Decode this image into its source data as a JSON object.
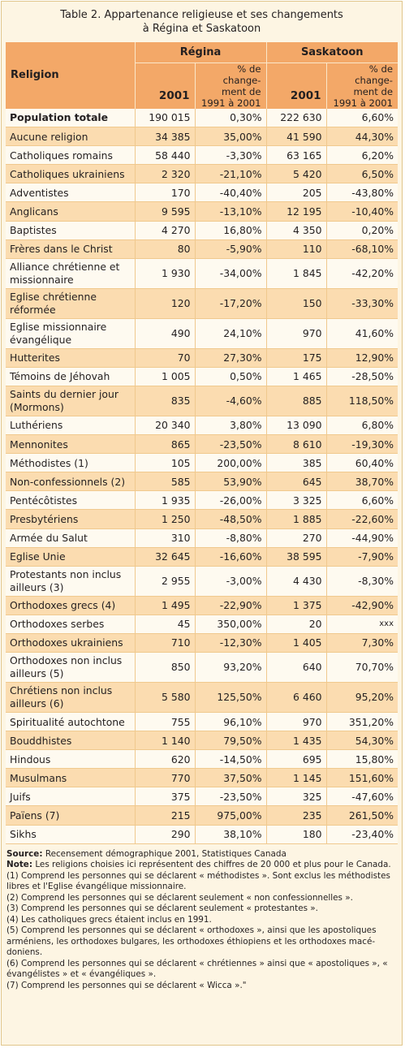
{
  "title": {
    "line1": "Table 2. Appartenance religieuse et ses changements",
    "line2": "à Régina et Saskatoon"
  },
  "header": {
    "religion": "Religion",
    "regina": "Régina",
    "saskatoon": "Saskatoon",
    "year": "2001",
    "pct_line1": "% de change-",
    "pct_line2": "ment de",
    "pct_line3": "1991 à 2001"
  },
  "rows": [
    {
      "name": "Population totale",
      "l2": "",
      "r2001": "190 015",
      "rpct": "0,30%",
      "s2001": "222 630",
      "spct": "6,60%",
      "bold": true
    },
    {
      "name": "Aucune religion",
      "l2": "",
      "r2001": "34 385",
      "rpct": "35,00%",
      "s2001": "41 590",
      "spct": "44,30%"
    },
    {
      "name": "Catholiques romains",
      "l2": "",
      "r2001": "58 440",
      "rpct": "-3,30%",
      "s2001": "63 165",
      "spct": "6,20%"
    },
    {
      "name": "Catholiques ukrainiens",
      "l2": "",
      "r2001": "2 320",
      "rpct": "-21,10%",
      "s2001": "5 420",
      "spct": "6,50%"
    },
    {
      "name": "Adventistes",
      "l2": "",
      "r2001": "170",
      "rpct": "-40,40%",
      "s2001": "205",
      "spct": "-43,80%"
    },
    {
      "name": "Anglicans",
      "l2": "",
      "r2001": "9 595",
      "rpct": "-13,10%",
      "s2001": "12 195",
      "spct": "-10,40%"
    },
    {
      "name": "Baptistes",
      "l2": "",
      "r2001": "4 270",
      "rpct": "16,80%",
      "s2001": "4 350",
      "spct": "0,20%"
    },
    {
      "name": "Frères dans le Christ",
      "l2": "",
      "r2001": "80",
      "rpct": "-5,90%",
      "s2001": "110",
      "spct": "-68,10%"
    },
    {
      "name": "Alliance chrétienne et",
      "l2": "missionnaire",
      "r2001": "1 930",
      "rpct": "-34,00%",
      "s2001": "1 845",
      "spct": "-42,20%"
    },
    {
      "name": "Eglise chrétienne",
      "l2": "réformée",
      "r2001": "120",
      "rpct": "-17,20%",
      "s2001": "150",
      "spct": "-33,30%"
    },
    {
      "name": "Eglise missionnaire",
      "l2": "évangélique",
      "r2001": "490",
      "rpct": "24,10%",
      "s2001": "970",
      "spct": "41,60%"
    },
    {
      "name": "Hutterites",
      "l2": "",
      "r2001": "70",
      "rpct": "27,30%",
      "s2001": "175",
      "spct": "12,90%"
    },
    {
      "name": "Témoins de Jéhovah",
      "l2": "",
      "r2001": "1 005",
      "rpct": "0,50%",
      "s2001": "1 465",
      "spct": "-28,50%"
    },
    {
      "name": "Saints du dernier jour",
      "l2": "(Mormons)",
      "r2001": "835",
      "rpct": "-4,60%",
      "s2001": "885",
      "spct": "118,50%"
    },
    {
      "name": "Luthériens",
      "l2": "",
      "r2001": "20 340",
      "rpct": "3,80%",
      "s2001": "13 090",
      "spct": "6,80%"
    },
    {
      "name": "Mennonites",
      "l2": "",
      "r2001": "865",
      "rpct": "-23,50%",
      "s2001": "8 610",
      "spct": "-19,30%"
    },
    {
      "name": "Méthodistes (1)",
      "l2": "",
      "r2001": "105",
      "rpct": "200,00%",
      "s2001": "385",
      "spct": "60,40%"
    },
    {
      "name": "Non-confessionnels (2)",
      "l2": "",
      "r2001": "585",
      "rpct": "53,90%",
      "s2001": "645",
      "spct": "38,70%"
    },
    {
      "name": "Pentécôtistes",
      "l2": "",
      "r2001": "1 935",
      "rpct": "-26,00%",
      "s2001": "3 325",
      "spct": "6,60%"
    },
    {
      "name": "Presbytériens",
      "l2": "",
      "r2001": "1 250",
      "rpct": "-48,50%",
      "s2001": "1 885",
      "spct": "-22,60%"
    },
    {
      "name": "Armée du Salut",
      "l2": "",
      "r2001": "310",
      "rpct": "-8,80%",
      "s2001": "270",
      "spct": "-44,90%"
    },
    {
      "name": "Eglise Unie",
      "l2": "",
      "r2001": "32 645",
      "rpct": "-16,60%",
      "s2001": "38 595",
      "spct": "-7,90%"
    },
    {
      "name": "Protestants non inclus",
      "l2": "ailleurs (3)",
      "r2001": "2 955",
      "rpct": "-3,00%",
      "s2001": "4 430",
      "spct": "-8,30%"
    },
    {
      "name": "Orthodoxes grecs (4)",
      "l2": "",
      "r2001": "1 495",
      "rpct": "-22,90%",
      "s2001": "1 375",
      "spct": "-42,90%"
    },
    {
      "name": "Orthodoxes serbes",
      "l2": "",
      "r2001": "45",
      "rpct": "350,00%",
      "s2001": "20",
      "spct": "xxx",
      "small": true
    },
    {
      "name": "Orthodoxes ukrainiens",
      "l2": "",
      "r2001": "710",
      "rpct": "-12,30%",
      "s2001": "1 405",
      "spct": "7,30%"
    },
    {
      "name": "Orthodoxes non inclus",
      "l2": "ailleurs (5)",
      "r2001": "850",
      "rpct": "93,20%",
      "s2001": "640",
      "spct": "70,70%"
    },
    {
      "name": "Chrétiens non inclus",
      "l2": "ailleurs (6)",
      "r2001": "5 580",
      "rpct": "125,50%",
      "s2001": "6 460",
      "spct": "95,20%"
    },
    {
      "name": "Spiritualité autochtone",
      "l2": "",
      "r2001": "755",
      "rpct": "96,10%",
      "s2001": "970",
      "spct": "351,20%"
    },
    {
      "name": "Bouddhistes",
      "l2": "",
      "r2001": "1 140",
      "rpct": "79,50%",
      "s2001": "1 435",
      "spct": "54,30%"
    },
    {
      "name": "Hindous",
      "l2": "",
      "r2001": "620",
      "rpct": "-14,50%",
      "s2001": "695",
      "spct": "15,80%"
    },
    {
      "name": "Musulmans",
      "l2": "",
      "r2001": "770",
      "rpct": "37,50%",
      "s2001": "1 145",
      "spct": "151,60%"
    },
    {
      "name": "Juifs",
      "l2": "",
      "r2001": "375",
      "rpct": "-23,50%",
      "s2001": "325",
      "spct": "-47,60%"
    },
    {
      "name": "Païens (7)",
      "l2": "",
      "r2001": "215",
      "rpct": "975,00%",
      "s2001": "235",
      "spct": "261,50%"
    },
    {
      "name": "Sikhs",
      "l2": "",
      "r2001": "290",
      "rpct": "38,10%",
      "s2001": "180",
      "spct": "-23,40%"
    }
  ],
  "notes": {
    "source_label": "Source:",
    "source_text": " Recensement démographique 2001, Statistiques Canada",
    "note_label": "Note:",
    "note_text": " Les religions choisies ici représentent des chiffres de 20 000 et plus pour le Canada.",
    "fn1": "(1) Comprend les personnes qui se déclarent « méthodistes ». Sont exclus les méthodistes libres et l'Eglise évangélique missionnaire.",
    "fn2": "(2) Comprend les personnes qui se déclarent seulement « non confessionnelles ».",
    "fn3": "(3) Comprend les personnes qui se déclarent seulement « protestantes ».",
    "fn4": "(4) Les catholiques grecs étaient inclus en 1991.",
    "fn5": "(5) Comprend les personnes qui se déclarent « orthodoxes », ainsi que les apostoliques arméniens, les orthodoxes bulgares, les orthodoxes éthiopiens et les orthodoxes macé-doniens.",
    "fn6": "(6) Comprend les personnes qui se déclarent « chrétiennes » ainsi que « apostoliques », « évangélistes » et « évangéliques ».",
    "fn7": "(7) Comprend les personnes qui se déclarent « Wicca ».\""
  },
  "colors": {
    "header_bg": "#f3a868",
    "band": "#fbdcb0",
    "page_bg": "#fdf5e3"
  }
}
